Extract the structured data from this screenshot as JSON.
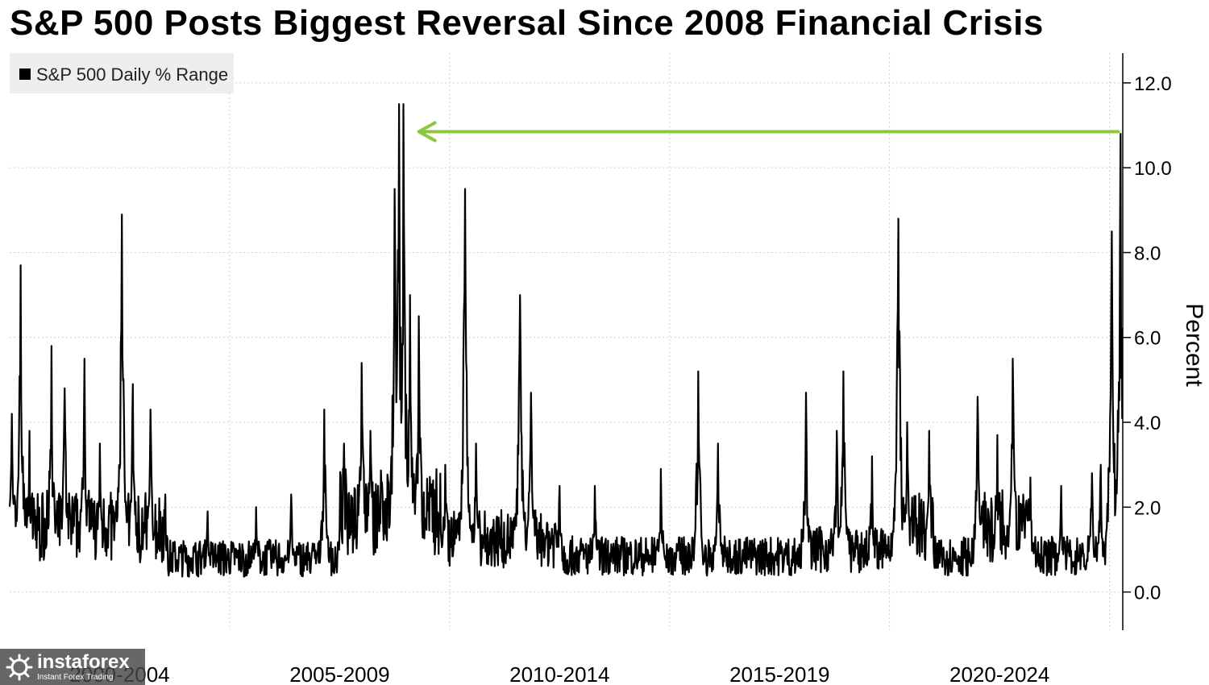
{
  "title": "S&P 500 Posts Biggest Reversal Since 2008 Financial Crisis",
  "watermark": {
    "brand": "instaforex",
    "tagline": "Instant Forex Trading"
  },
  "colors": {
    "series": "#000000",
    "arrow": "#8dc63f",
    "grid": "#cfcfcf",
    "legend_bg": "#eeeeee"
  },
  "chart_data": {
    "type": "line",
    "title": "S&P 500 Posts Biggest Reversal Since 2008 Financial Crisis",
    "ylabel": "Percent",
    "ylim": [
      -0.9,
      12.7
    ],
    "y_ticks": [
      "0.0",
      "2.0",
      "4.0",
      "6.0",
      "8.0",
      "10.0",
      "12.0"
    ],
    "y_axis_side": "right",
    "x_range": [
      2000.0,
      2025.3
    ],
    "x_period_labels": [
      "2000-2004",
      "2005-2009",
      "2010-2014",
      "2015-2019",
      "2020-2024"
    ],
    "grid": true,
    "legend": {
      "position": "top-left",
      "entries": [
        "S&P 500 Daily % Range"
      ]
    },
    "series": [
      {
        "name": "S&P 500 Daily % Range",
        "x_unit": "year",
        "peaks": [
          {
            "x": 2000.05,
            "y": 4.2
          },
          {
            "x": 2000.25,
            "y": 7.7
          },
          {
            "x": 2000.45,
            "y": 3.8
          },
          {
            "x": 2000.95,
            "y": 5.8
          },
          {
            "x": 2001.25,
            "y": 4.8
          },
          {
            "x": 2001.7,
            "y": 5.5
          },
          {
            "x": 2002.05,
            "y": 3.5
          },
          {
            "x": 2002.55,
            "y": 8.9
          },
          {
            "x": 2002.8,
            "y": 4.9
          },
          {
            "x": 2003.2,
            "y": 4.3
          },
          {
            "x": 2004.5,
            "y": 1.9
          },
          {
            "x": 2005.6,
            "y": 2.0
          },
          {
            "x": 2006.4,
            "y": 2.3
          },
          {
            "x": 2007.15,
            "y": 4.3
          },
          {
            "x": 2007.6,
            "y": 3.5
          },
          {
            "x": 2008.0,
            "y": 5.4
          },
          {
            "x": 2008.2,
            "y": 3.8
          },
          {
            "x": 2008.75,
            "y": 9.5
          },
          {
            "x": 2008.85,
            "y": 11.5
          },
          {
            "x": 2008.95,
            "y": 11.5
          },
          {
            "x": 2009.1,
            "y": 7.0
          },
          {
            "x": 2009.3,
            "y": 6.5
          },
          {
            "x": 2009.9,
            "y": 3.0
          },
          {
            "x": 2010.35,
            "y": 9.5
          },
          {
            "x": 2010.6,
            "y": 3.5
          },
          {
            "x": 2011.6,
            "y": 7.0
          },
          {
            "x": 2011.85,
            "y": 4.7
          },
          {
            "x": 2012.5,
            "y": 2.5
          },
          {
            "x": 2013.3,
            "y": 2.5
          },
          {
            "x": 2014.8,
            "y": 2.9
          },
          {
            "x": 2015.65,
            "y": 5.2
          },
          {
            "x": 2016.1,
            "y": 3.5
          },
          {
            "x": 2018.1,
            "y": 4.7
          },
          {
            "x": 2018.8,
            "y": 3.8
          },
          {
            "x": 2018.95,
            "y": 5.2
          },
          {
            "x": 2019.6,
            "y": 3.2
          },
          {
            "x": 2020.2,
            "y": 8.8
          },
          {
            "x": 2020.4,
            "y": 4.0
          },
          {
            "x": 2020.9,
            "y": 3.8
          },
          {
            "x": 2022.0,
            "y": 4.6
          },
          {
            "x": 2022.45,
            "y": 3.7
          },
          {
            "x": 2022.8,
            "y": 5.5
          },
          {
            "x": 2023.2,
            "y": 2.7
          },
          {
            "x": 2023.9,
            "y": 2.5
          },
          {
            "x": 2024.6,
            "y": 2.8
          },
          {
            "x": 2024.8,
            "y": 3.0
          },
          {
            "x": 2025.05,
            "y": 8.5
          },
          {
            "x": 2025.25,
            "y": 10.8
          }
        ]
      }
    ],
    "annotations": [
      {
        "type": "arrow",
        "from": {
          "x": 2025.2,
          "y": 10.85
        },
        "to": {
          "x": 2009.3,
          "y": 10.85
        }
      }
    ]
  }
}
